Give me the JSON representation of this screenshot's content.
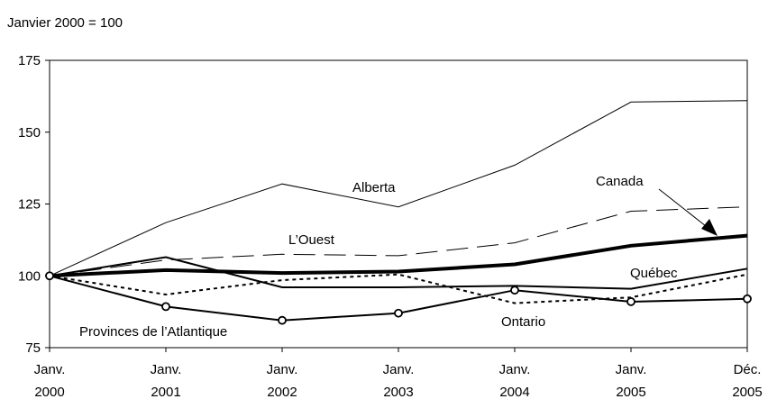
{
  "chart_data": {
    "type": "line",
    "unit_label": "Janvier 2000 = 100",
    "x": [
      "Janv.\n2000",
      "Janv.\n2001",
      "Janv.\n2002",
      "Janv.\n2003",
      "Janv.\n2004",
      "Janv.\n2005",
      "Déc.\n2005"
    ],
    "x_tick_lines": [
      [
        "Janv.",
        "2000"
      ],
      [
        "Janv.",
        "2001"
      ],
      [
        "Janv.",
        "2002"
      ],
      [
        "Janv.",
        "2003"
      ],
      [
        "Janv.",
        "2004"
      ],
      [
        "Janv.",
        "2005"
      ],
      [
        "Déc.",
        "2005"
      ]
    ],
    "y_ticks": [
      75,
      100,
      125,
      150,
      175
    ],
    "ylim": [
      75,
      175
    ],
    "grid": false,
    "series": [
      {
        "name": "Alberta",
        "style": "thin-solid",
        "values": [
          100,
          118.5,
          132,
          124,
          138.5,
          160.5,
          161
        ]
      },
      {
        "name": "L’Ouest",
        "style": "long-dash",
        "values": [
          100,
          105.5,
          107.5,
          107,
          111.5,
          122.5,
          124
        ]
      },
      {
        "name": "Canada",
        "style": "thick-solid",
        "values": [
          100,
          102,
          101,
          101.5,
          104,
          110.5,
          114
        ]
      },
      {
        "name": "Québec",
        "style": "medium-solid",
        "values": [
          100,
          106.5,
          96,
          96,
          96.5,
          95.5,
          102.5
        ]
      },
      {
        "name": "Ontario",
        "style": "dotted",
        "values": [
          100,
          93.5,
          98.5,
          100.5,
          90.5,
          92.5,
          100.5
        ]
      },
      {
        "name": "Provinces de l’Atlantique",
        "style": "solid-circles",
        "values": [
          100,
          89.3,
          84.5,
          87,
          95,
          91,
          92
        ]
      }
    ],
    "annotations": [
      "Alberta",
      "L’Ouest",
      "Canada",
      "Québec",
      "Ontario",
      "Provinces de l’Atlantique"
    ]
  }
}
